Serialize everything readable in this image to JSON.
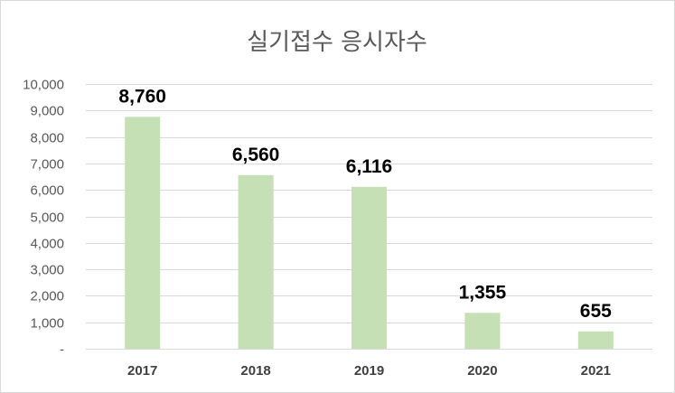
{
  "chart_data": {
    "type": "bar",
    "title": "실기접수 응시자수",
    "categories": [
      "2017",
      "2018",
      "2019",
      "2020",
      "2021"
    ],
    "values": [
      8760,
      6560,
      6116,
      1355,
      655
    ],
    "data_labels": [
      "8,760",
      "6,560",
      "6,116",
      "1,355",
      "655"
    ],
    "ylim": [
      0,
      10000
    ],
    "yticks": [
      0,
      1000,
      2000,
      3000,
      4000,
      5000,
      6000,
      7000,
      8000,
      9000,
      10000
    ],
    "ytick_labels": [
      "-",
      "1,000",
      "2,000",
      "3,000",
      "4,000",
      "5,000",
      "6,000",
      "7,000",
      "8,000",
      "9,000",
      "10,000"
    ],
    "grid": true,
    "legend": "none",
    "bar_color": "#c5e0b4"
  }
}
